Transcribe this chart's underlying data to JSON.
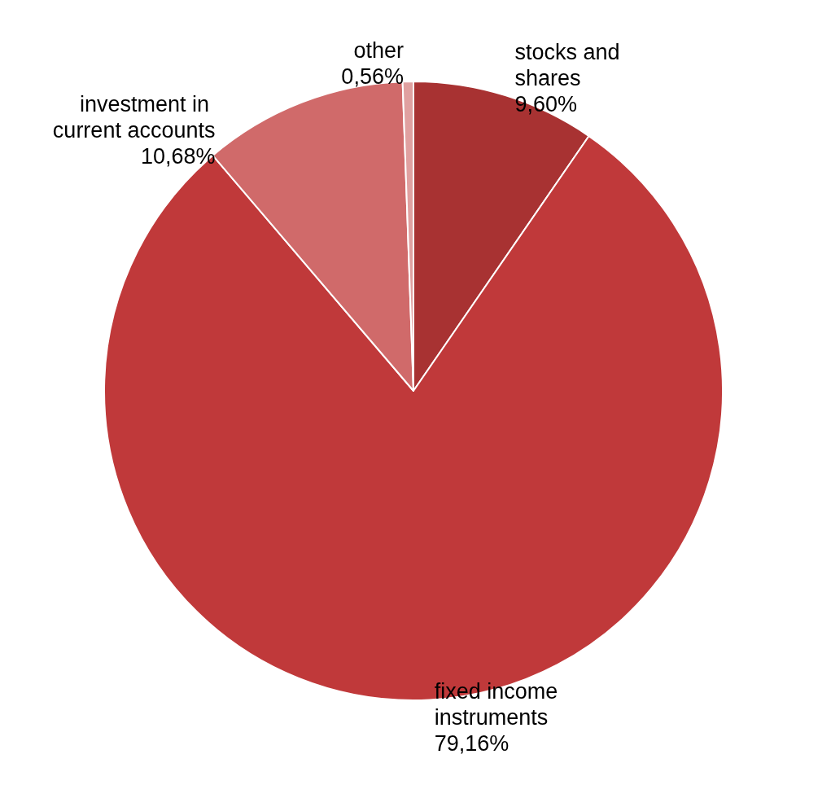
{
  "chart_data": {
    "type": "pie",
    "categories": [
      "stocks and shares",
      "fixed income instruments",
      "investment in current accounts",
      "other"
    ],
    "values": [
      9.6,
      79.16,
      10.68,
      0.56
    ],
    "colors": [
      "#a83232",
      "#c0393a",
      "#d06a6a",
      "#e0a0a0"
    ],
    "value_labels": [
      "9,60%",
      "79,16%",
      "10,68%",
      "0,56%"
    ],
    "legend": false
  }
}
